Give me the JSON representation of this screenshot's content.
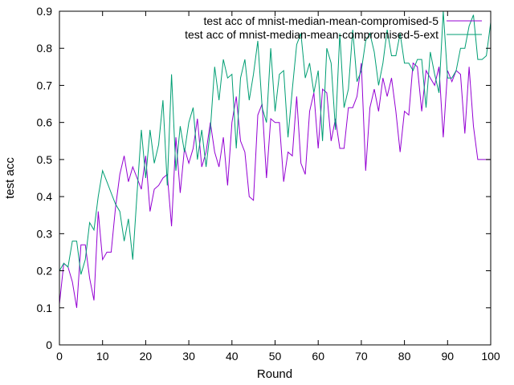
{
  "chart_data": {
    "type": "line",
    "title": "",
    "xlabel": "Round",
    "ylabel": "test acc",
    "xlim": [
      0,
      100
    ],
    "ylim": [
      0,
      0.9
    ],
    "xticks": [
      0,
      10,
      20,
      30,
      40,
      50,
      60,
      70,
      80,
      90,
      100
    ],
    "yticks": [
      0,
      0.1,
      0.2,
      0.3,
      0.4,
      0.5,
      0.6,
      0.7,
      0.8,
      0.9
    ],
    "xtick_labels": [
      "0",
      "10",
      "20",
      "30",
      "40",
      "50",
      "60",
      "70",
      "80",
      "90",
      "100"
    ],
    "ytick_labels": [
      "0",
      "0.1",
      "0.2",
      "0.3",
      "0.4",
      "0.5",
      "0.6",
      "0.7",
      "0.8",
      "0.9"
    ],
    "grid": false,
    "legend_position": "top-right",
    "series": [
      {
        "name": "test acc of mnist-median-mean-compromised-5",
        "color": "#9400d3",
        "x": [
          0,
          1,
          2,
          3,
          4,
          5,
          6,
          7,
          8,
          9,
          10,
          11,
          12,
          13,
          14,
          15,
          16,
          17,
          18,
          19,
          20,
          21,
          22,
          23,
          24,
          25,
          26,
          27,
          28,
          29,
          30,
          31,
          32,
          33,
          34,
          35,
          36,
          37,
          38,
          39,
          40,
          41,
          42,
          43,
          44,
          45,
          46,
          47,
          48,
          49,
          50,
          51,
          52,
          53,
          54,
          55,
          56,
          57,
          58,
          59,
          60,
          61,
          62,
          63,
          64,
          65,
          66,
          67,
          68,
          69,
          70,
          71,
          72,
          73,
          74,
          75,
          76,
          77,
          78,
          79,
          80,
          81,
          82,
          83,
          84,
          85,
          86,
          87,
          88,
          89,
          90,
          91,
          92,
          93,
          94,
          95,
          96,
          97,
          98,
          99,
          100
        ],
        "values": [
          0.11,
          0.22,
          0.21,
          0.17,
          0.1,
          0.27,
          0.27,
          0.18,
          0.12,
          0.36,
          0.23,
          0.25,
          0.25,
          0.37,
          0.46,
          0.51,
          0.44,
          0.48,
          0.45,
          0.42,
          0.51,
          0.36,
          0.42,
          0.43,
          0.45,
          0.46,
          0.32,
          0.56,
          0.41,
          0.53,
          0.49,
          0.53,
          0.61,
          0.48,
          0.52,
          0.6,
          0.52,
          0.48,
          0.56,
          0.43,
          0.6,
          0.67,
          0.55,
          0.52,
          0.4,
          0.39,
          0.62,
          0.65,
          0.45,
          0.61,
          0.6,
          0.6,
          0.44,
          0.52,
          0.51,
          0.67,
          0.49,
          0.46,
          0.63,
          0.68,
          0.53,
          0.69,
          0.68,
          0.55,
          0.61,
          0.53,
          0.53,
          0.64,
          0.64,
          0.67,
          0.76,
          0.47,
          0.64,
          0.69,
          0.63,
          0.72,
          0.67,
          0.72,
          0.63,
          0.52,
          0.63,
          0.62,
          0.76,
          0.75,
          0.63,
          0.74,
          0.72,
          0.7,
          0.75,
          0.56,
          0.74,
          0.71,
          0.74,
          0.73,
          0.57,
          0.75,
          0.59,
          0.5,
          0.5,
          0.5,
          0.5
        ]
      },
      {
        "name": "test acc of mnist-median-mean-compromised-5-ext",
        "color": "#009e73",
        "x": [
          0,
          1,
          2,
          3,
          4,
          5,
          6,
          7,
          8,
          9,
          10,
          11,
          12,
          13,
          14,
          15,
          16,
          17,
          18,
          19,
          20,
          21,
          22,
          23,
          24,
          25,
          26,
          27,
          28,
          29,
          30,
          31,
          32,
          33,
          34,
          35,
          36,
          37,
          38,
          39,
          40,
          41,
          42,
          43,
          44,
          45,
          46,
          47,
          48,
          49,
          50,
          51,
          52,
          53,
          54,
          55,
          56,
          57,
          58,
          59,
          60,
          61,
          62,
          63,
          64,
          65,
          66,
          67,
          68,
          69,
          70,
          71,
          72,
          73,
          74,
          75,
          76,
          77,
          78,
          79,
          80,
          81,
          82,
          83,
          84,
          85,
          86,
          87,
          88,
          89,
          90,
          91,
          92,
          93,
          94,
          95,
          96,
          97,
          98,
          99,
          100
        ],
        "values": [
          0.2,
          0.22,
          0.21,
          0.28,
          0.28,
          0.19,
          0.23,
          0.33,
          0.31,
          0.4,
          0.47,
          0.44,
          0.41,
          0.38,
          0.36,
          0.28,
          0.34,
          0.23,
          0.41,
          0.58,
          0.45,
          0.58,
          0.49,
          0.54,
          0.66,
          0.43,
          0.73,
          0.47,
          0.59,
          0.52,
          0.6,
          0.64,
          0.5,
          0.58,
          0.48,
          0.58,
          0.75,
          0.66,
          0.77,
          0.72,
          0.73,
          0.53,
          0.72,
          0.77,
          0.66,
          0.73,
          0.82,
          0.64,
          0.6,
          0.8,
          0.63,
          0.73,
          0.74,
          0.56,
          0.69,
          0.81,
          0.84,
          0.72,
          0.76,
          0.68,
          0.74,
          0.55,
          0.8,
          0.76,
          0.58,
          0.84,
          0.64,
          0.69,
          0.85,
          0.71,
          0.74,
          0.82,
          0.84,
          0.79,
          0.7,
          0.76,
          0.85,
          0.78,
          0.78,
          0.84,
          0.76,
          0.76,
          0.74,
          0.77,
          0.77,
          0.64,
          0.79,
          0.73,
          0.68,
          0.9,
          0.72,
          0.72,
          0.74,
          0.8,
          0.8,
          0.86,
          0.89,
          0.77,
          0.77,
          0.78,
          0.87
        ]
      }
    ]
  }
}
